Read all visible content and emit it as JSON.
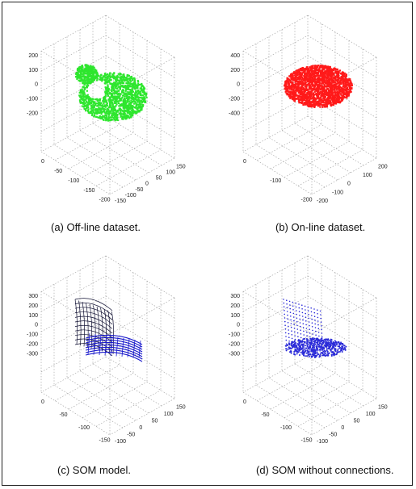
{
  "panels": [
    {
      "caption": "(a) Off-line dataset.",
      "point_color": "#2ee62e",
      "z_ticks": [
        "200",
        "100",
        "0",
        "-100",
        "-200"
      ],
      "x_ticks": [
        "0",
        "-50",
        "-100",
        "-150",
        "-200"
      ],
      "y_ticks": [
        "-150",
        "-100",
        "-50",
        "0",
        "50",
        "100",
        "150"
      ]
    },
    {
      "caption": "(b) On-line dataset.",
      "point_color": "#ff1a1a",
      "z_ticks": [
        "400",
        "200",
        "0",
        "-200",
        "-400"
      ],
      "x_ticks": [
        "0",
        "-100",
        "-200"
      ],
      "y_ticks": [
        "-200",
        "-100",
        "0",
        "100",
        "200"
      ]
    },
    {
      "caption": "(c) SOM model.",
      "point_color": "#1a1acc",
      "mesh_color": "#111133",
      "z_ticks": [
        "300",
        "200",
        "100",
        "0",
        "-100",
        "-200",
        "-300"
      ],
      "x_ticks": [
        "0",
        "-50",
        "-100",
        "-150"
      ],
      "y_ticks": [
        "-100",
        "-50",
        "0",
        "50",
        "100",
        "150"
      ]
    },
    {
      "caption": "(d) SOM without connections.",
      "point_color": "#2a2ad8",
      "z_ticks": [
        "300",
        "200",
        "100",
        "0",
        "-100",
        "-200",
        "-300"
      ],
      "x_ticks": [
        "0",
        "-50",
        "-100",
        "-150"
      ],
      "y_ticks": [
        "-100",
        "-50",
        "0",
        "50",
        "100",
        "150"
      ]
    }
  ]
}
